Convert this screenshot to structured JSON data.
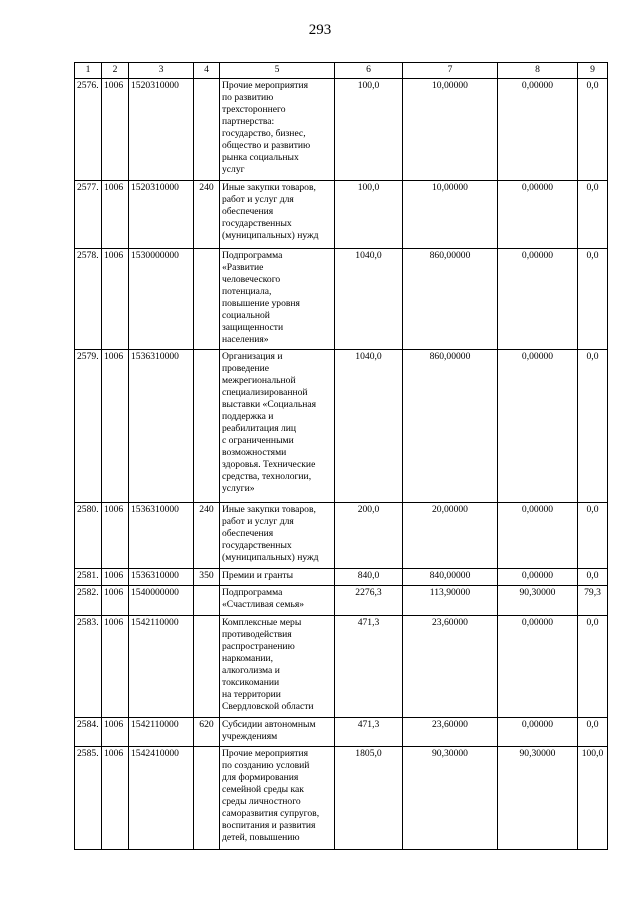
{
  "page_number": "293",
  "table": {
    "header": [
      "1",
      "2",
      "3",
      "4",
      "5",
      "6",
      "7",
      "8",
      "9"
    ],
    "rows": [
      [
        "2576.",
        "1006",
        "1520310000",
        null,
        "Прочие мероприятия\nпо развитию\nтрехстороннего\nпартнерства:\nгосударство, бизнес,\nобщество и развитию\nрынка социальных\nуслуг",
        "100,0",
        "10,00000",
        "0,00000",
        "0,0"
      ],
      [
        "2577.",
        "1006",
        "1520310000",
        "240",
        "Иные закупки товаров,\nработ и услуг для\nобеспечения\nгосударственных\n(муниципальных) нужд",
        "100,0",
        "10,00000",
        "0,00000",
        "0,0"
      ],
      [
        "2578.",
        "1006",
        "1530000000",
        null,
        "Подпрограмма\n«Развитие\nчеловеческого\nпотенциала,\nповышение уровня\nсоциальной\nзащищенности\nнаселения»",
        "1040,0",
        "860,00000",
        "0,00000",
        "0,0"
      ],
      [
        "2579.",
        "1006",
        "1536310000",
        null,
        "Организация и\nпроведение\nмежрегиональной\nспециализированной\nвыставки «Социальная\nподдержка и\nреабилитация лиц\nс ограниченными\nвозможностями\nздоровья. Технические\nсредства, технологии,\nуслуги»",
        "1040,0",
        "860,00000",
        "0,00000",
        "0,0"
      ],
      [
        "2580.",
        "1006",
        "1536310000",
        "240",
        "Иные закупки товаров,\nработ и услуг для\nобеспечения\nгосударственных\n(муниципальных) нужд",
        "200,0",
        "20,00000",
        "0,00000",
        "0,0"
      ],
      [
        "2581.",
        "1006",
        "1536310000",
        "350",
        "Премии и гранты",
        "840,0",
        "840,00000",
        "0,00000",
        "0,0"
      ],
      [
        "2582.",
        "1006",
        "1540000000",
        null,
        "Подпрограмма\n«Счастливая семья»",
        "2276,3",
        "113,90000",
        "90,30000",
        "79,3"
      ],
      [
        "2583.",
        "1006",
        "1542110000",
        null,
        "Комплексные меры\nпротиводействия\nраспространению\nнаркомании,\nалкоголизма и\nтоксикомании\nна территории\nСвердловской области",
        "471,3",
        "23,60000",
        "0,00000",
        "0,0"
      ],
      [
        "2584.",
        "1006",
        "1542110000",
        "620",
        "Субсидии автономным\nучреждениям",
        "471,3",
        "23,60000",
        "0,00000",
        "0,0"
      ],
      [
        "2585.",
        "1006",
        "1542410000",
        null,
        "Прочие мероприятия\nпо созданию условий\nдля формирования\nсемейной среды как\nсреды личностного\nсаморазвития супругов,\nвоспитания и развития\nдетей, повышению",
        "1805,0",
        "90,30000",
        "90,30000",
        "100,0"
      ]
    ]
  }
}
